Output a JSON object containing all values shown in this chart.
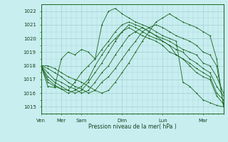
{
  "xlabel": "Pression niveau de la mer( hPa )",
  "bg_color": "#c8eef0",
  "grid_color": "#a8d4d8",
  "line_color": "#1a6620",
  "ylim": [
    1014.5,
    1022.5
  ],
  "yticks": [
    1015,
    1016,
    1017,
    1018,
    1019,
    1020,
    1021,
    1022
  ],
  "day_labels": [
    "Ven",
    "Mer",
    "Sam",
    "Dim",
    "Lun",
    "Mar"
  ],
  "day_positions": [
    0,
    12,
    24,
    48,
    72,
    96
  ],
  "total_hours": 108,
  "series": [
    [
      1018.0,
      1017.8,
      1017.5,
      1017.2,
      1016.8,
      1016.5,
      1016.3,
      1016.0,
      1016.2,
      1016.8,
      1017.2,
      1017.8,
      1018.5,
      1019.2,
      1019.8,
      1020.5,
      1020.8,
      1021.0,
      1020.8,
      1020.5,
      1020.2,
      1020.0,
      1019.8,
      1019.5,
      1019.0,
      1018.8,
      1018.0,
      1015.2
    ],
    [
      1018.0,
      1018.0,
      1017.8,
      1017.5,
      1017.2,
      1017.0,
      1016.8,
      1016.5,
      1016.2,
      1016.0,
      1016.2,
      1016.8,
      1017.5,
      1018.2,
      1019.0,
      1019.8,
      1020.5,
      1021.2,
      1021.5,
      1021.8,
      1021.5,
      1021.2,
      1021.0,
      1020.8,
      1020.5,
      1020.2,
      1018.5,
      1015.0
    ],
    [
      1018.0,
      1017.5,
      1017.0,
      1016.8,
      1016.5,
      1016.3,
      1016.0,
      1016.2,
      1016.8,
      1017.5,
      1018.0,
      1018.8,
      1019.5,
      1020.2,
      1020.5,
      1020.8,
      1020.5,
      1020.2,
      1020.0,
      1019.8,
      1019.5,
      1019.2,
      1019.0,
      1018.8,
      1018.2,
      1018.0,
      1017.2,
      1016.0
    ],
    [
      1018.0,
      1017.2,
      1016.8,
      1016.5,
      1016.2,
      1016.0,
      1016.2,
      1016.8,
      1017.5,
      1018.2,
      1019.0,
      1019.8,
      1020.5,
      1021.0,
      1020.8,
      1020.5,
      1020.2,
      1020.0,
      1019.8,
      1019.5,
      1019.2,
      1019.0,
      1018.5,
      1018.2,
      1017.8,
      1017.5,
      1016.5,
      1015.8
    ],
    [
      1018.0,
      1017.0,
      1016.6,
      1016.3,
      1016.0,
      1016.2,
      1016.5,
      1017.0,
      1018.0,
      1018.8,
      1019.5,
      1020.0,
      1020.5,
      1020.8,
      1020.5,
      1020.2,
      1020.0,
      1019.8,
      1019.5,
      1019.0,
      1018.8,
      1018.5,
      1018.2,
      1017.8,
      1017.5,
      1017.2,
      1016.0,
      1015.5
    ],
    [
      1018.0,
      1016.8,
      1016.5,
      1016.3,
      1016.2,
      1016.8,
      1017.5,
      1018.0,
      1018.5,
      1019.2,
      1019.8,
      1020.5,
      1021.0,
      1021.2,
      1021.0,
      1020.8,
      1020.5,
      1020.2,
      1019.8,
      1019.5,
      1018.8,
      1018.5,
      1018.0,
      1017.5,
      1017.2,
      1017.0,
      1015.8,
      1015.2
    ],
    [
      1018.0,
      1016.5,
      1016.4,
      1018.5,
      1019.0,
      1018.8,
      1019.2,
      1019.0,
      1018.5,
      1021.0,
      1022.0,
      1022.2,
      1021.8,
      1021.5,
      1021.2,
      1021.0,
      1020.8,
      1020.5,
      1020.2,
      1020.0,
      1019.8,
      1016.8,
      1016.5,
      1016.0,
      1015.5,
      1015.3,
      1015.1,
      1015.0
    ]
  ]
}
